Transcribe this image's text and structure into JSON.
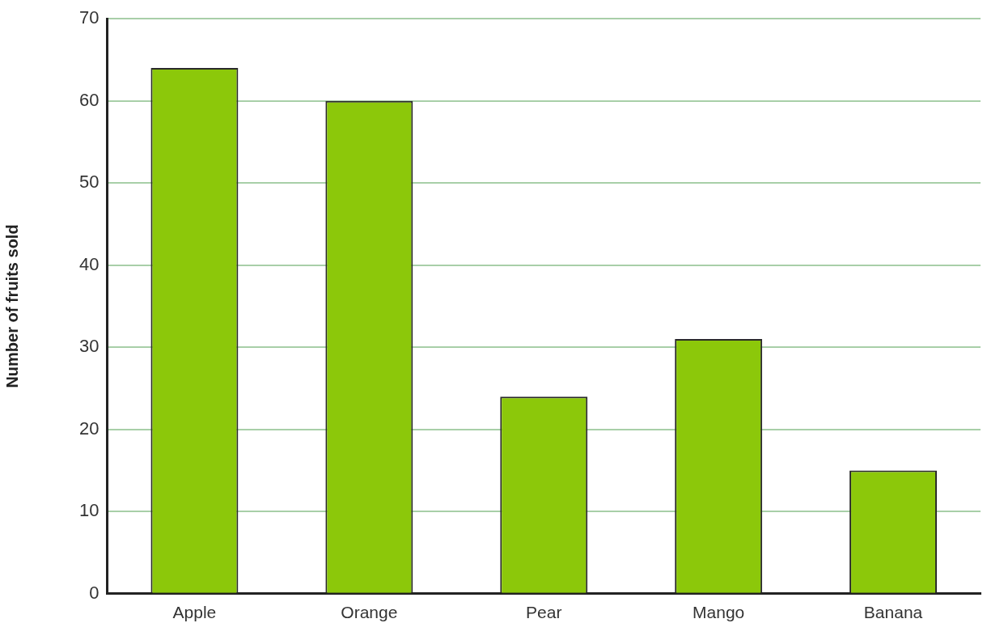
{
  "chart_data": {
    "type": "bar",
    "ylabel": "Number of fruits sold",
    "categories": [
      "Apple",
      "Orange",
      "Pear",
      "Mango",
      "Banana"
    ],
    "values": [
      64,
      60,
      24,
      31,
      15
    ],
    "color": "#8cc80a",
    "ylim": [
      0,
      70
    ],
    "yticks": [
      0,
      10,
      20,
      30,
      40,
      50,
      60,
      70
    ],
    "grid": "y",
    "legend": false
  }
}
